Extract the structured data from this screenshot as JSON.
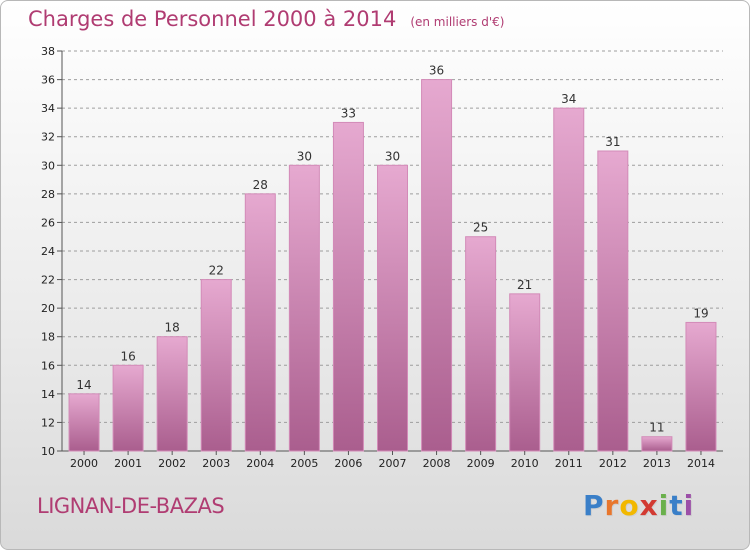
{
  "title": "Charges de Personnel 2000 à 2014",
  "subtitle": "(en milliers d'€)",
  "commune": "LIGNAN-DE-BAZAS",
  "logo": {
    "letters": [
      "P",
      "r",
      "o",
      "x",
      "i",
      "t",
      "i"
    ],
    "colors": [
      "#3a7fc8",
      "#e8762c",
      "#f2b800",
      "#d23a32",
      "#6ab04c",
      "#3a7fc8",
      "#9c4fa8"
    ]
  },
  "colors": {
    "bar_top": "#e6a9d0",
    "bar_bottom": "#aa5e8e",
    "bar_edge": "#d38bb8",
    "grid": "#9e9e9e",
    "text_accent": "#b03c72"
  },
  "chart_data": {
    "type": "bar",
    "categories": [
      "2000",
      "2001",
      "2002",
      "2003",
      "2004",
      "2005",
      "2006",
      "2007",
      "2008",
      "2009",
      "2010",
      "2011",
      "2012",
      "2013",
      "2014"
    ],
    "values": [
      14,
      16,
      18,
      22,
      28,
      30,
      33,
      30,
      36,
      25,
      21,
      34,
      31,
      11,
      19
    ],
    "ylim": [
      10,
      38
    ],
    "yticks": [
      10,
      12,
      14,
      16,
      18,
      20,
      22,
      24,
      26,
      28,
      30,
      32,
      34,
      36,
      38
    ],
    "grid": "horizontal dashed",
    "xlabel": "",
    "ylabel": ""
  }
}
